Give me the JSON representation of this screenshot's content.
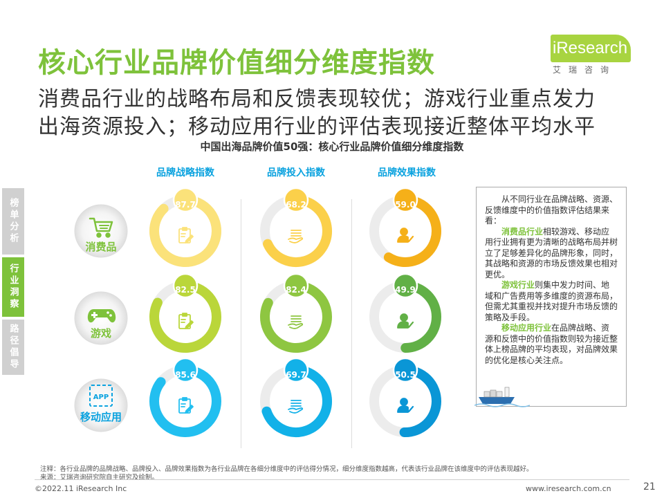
{
  "header": {
    "title": "核心行业品牌价值细分维度指数",
    "subtitle_line1": "消费品行业的战略布局和反馈表现较优；游戏行业重点发力",
    "subtitle_line2": "出海资源投入；移动应用行业的评估表现接近整体平均水平"
  },
  "logo": {
    "main": "iResearch",
    "sub": "艾瑞咨询"
  },
  "side_nav": {
    "tab1": "榜单分析",
    "tab2": "行业洞察",
    "tab3": "路径倡导"
  },
  "chart_data": {
    "type": "gauge-grid",
    "title": "中国出海品牌价值50强：核心行业品牌价值细分维度指数",
    "columns": [
      "品牌战略指数",
      "品牌投入指数",
      "品牌效果指数"
    ],
    "rows": [
      "消费品",
      "游戏",
      "移动应用"
    ],
    "value_max": 100,
    "values": [
      [
        87.7,
        68.2,
        59.0
      ],
      [
        82.5,
        82.4,
        49.9
      ],
      [
        85.6,
        69.7,
        50.5
      ]
    ],
    "value_labels": [
      [
        "87.7",
        "68.2",
        "59.0"
      ],
      [
        "82.5",
        "82.4",
        "49.9"
      ],
      [
        "85.6",
        "69.7",
        "50.5"
      ]
    ],
    "row_colors": {
      "消费品": [
        "#fbe27a",
        "#fbd04a",
        "#f5b019"
      ],
      "游戏": [
        "#bad63a",
        "#8ec641",
        "#61b046"
      ],
      "移动应用": [
        "#22bff0",
        "#12b1e8",
        "#0a96d6"
      ]
    },
    "track_color": "#ececec",
    "row_icons": [
      "shopping-cart-icon",
      "gamepad-icon",
      "app-icon"
    ],
    "column_icons": [
      "clipboard-edit-icon",
      "hand-coins-icon",
      "user-check-icon"
    ]
  },
  "note": {
    "intro": "从不同行业在品牌战略、资源、反馈维度中的价值指数评估结果来看：",
    "p1_highlight": "消费品行业",
    "p1_text": "相较游戏、移动应用行业拥有更为清晰的战略布局并树立了足够差异化的品牌形象，同时，其战略和资源的市场反馈效果也相对更优。",
    "p2_highlight": "游戏行业",
    "p2_text": "则集中发力时间、地域和广告费用等多维度的资源布局，但需尤其重视并找对提升市场反馈的策略及手段。",
    "p3_highlight": "移动应用行业",
    "p3_text": "在品牌战略、资源和反馈中的价值指数则较为接近整体上榜品牌的平均表现，对品牌效果的优化是核心关注点。"
  },
  "footer": {
    "note1": "注释：各行业品牌的品牌战略、品牌投入、品牌效果指数为各行业品牌在各细分维度中的评估得分情况，细分维度指数越高，代表该行业品牌在该维度中的评估表现越好。",
    "note2": "来源：艾瑞咨询研究院自主研究及绘制。",
    "copyright": "©2022.11 iResearch Inc",
    "url": "www.iresearch.com.cn",
    "page": "21"
  }
}
